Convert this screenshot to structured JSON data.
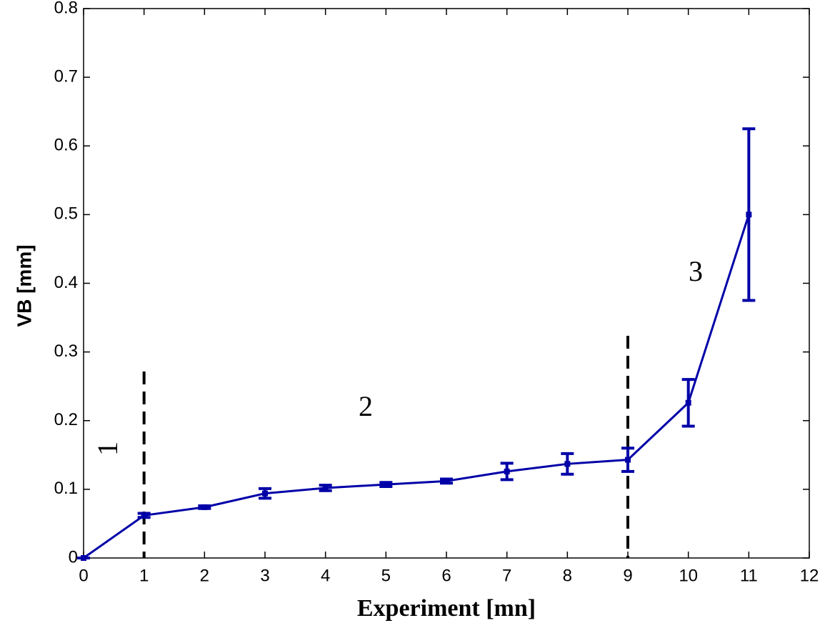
{
  "chart_data": {
    "type": "errorbar",
    "x_label": "Experiment [mn]",
    "y_label": "VB [mm]",
    "x": [
      0,
      1,
      2,
      3,
      4,
      5,
      6,
      7,
      8,
      9,
      10,
      11
    ],
    "series": [
      {
        "color": "#0000a8",
        "values": [
          0,
          0.062,
          0.074,
          0.094,
          0.102,
          0.107,
          0.112,
          0.126,
          0.137,
          0.143,
          0.226,
          0.5
        ],
        "errors": [
          0,
          0.003,
          0.002,
          0.007,
          0.004,
          0.003,
          0.003,
          0.012,
          0.015,
          0.017,
          0.034,
          0.125
        ]
      }
    ],
    "reference_lines": [
      1,
      9
    ],
    "annotations": [
      "1",
      "2",
      "3"
    ],
    "xlim": [
      0,
      12
    ],
    "ylim": [
      0,
      0.8
    ],
    "xticks": [
      0,
      1,
      2,
      3,
      4,
      5,
      6,
      7,
      8,
      9,
      10,
      11,
      12
    ],
    "yticks": [
      0,
      0.1,
      0.2,
      0.3,
      0.4,
      0.5,
      0.6,
      0.7,
      0.8
    ],
    "grid": false
  }
}
